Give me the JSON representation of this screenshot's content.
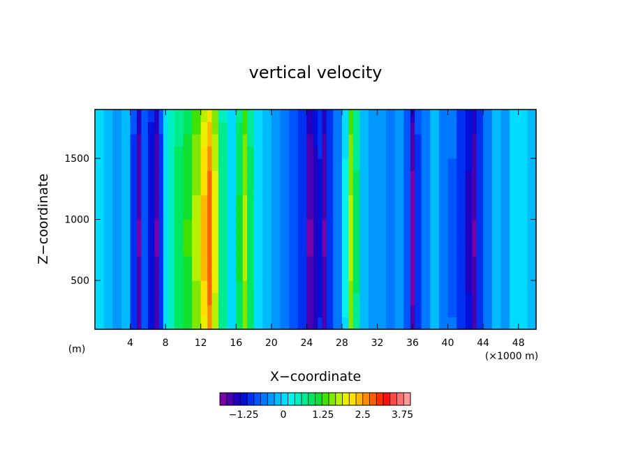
{
  "chart_data": {
    "type": "heatmap",
    "title": "vertical velocity",
    "xlabel": "X−coordinate",
    "ylabel": "Z−coordinate",
    "x_unit_label": "(×1000 m)",
    "y_unit_label": "(m)",
    "xlim": [
      0,
      50
    ],
    "ylim": [
      100,
      1900
    ],
    "x_ticks": [
      4,
      8,
      12,
      16,
      20,
      24,
      28,
      32,
      36,
      40,
      44,
      48
    ],
    "x_tick_labels": [
      "4",
      "8",
      "12",
      "16",
      "20",
      "24",
      "28",
      "32",
      "36",
      "40",
      "44",
      "48"
    ],
    "y_ticks": [
      500,
      1000,
      1500
    ],
    "y_tick_labels": [
      "500",
      "1000",
      "1500"
    ],
    "colorbar": {
      "min": -2.0,
      "max": 4.0,
      "step": 0.25,
      "tick_values": [
        -1.25,
        0,
        1.25,
        2.5,
        3.75
      ],
      "tick_labels": [
        "−1.25",
        "0",
        "1.25",
        "2.5",
        "3.75"
      ],
      "colors": [
        "#7a00a8",
        "#4a00b0",
        "#2200c0",
        "#0010d8",
        "#0030f0",
        "#0055ff",
        "#0078ff",
        "#0098ff",
        "#00bcff",
        "#00dcff",
        "#00f4ec",
        "#00f0c0",
        "#00ec90",
        "#00e860",
        "#10e030",
        "#40e000",
        "#80e800",
        "#b8f000",
        "#e8f000",
        "#ffe000",
        "#ffb800",
        "#ff8c00",
        "#ff6000",
        "#ff3000",
        "#ff1010",
        "#ff4848",
        "#ff7070",
        "#ff9898"
      ]
    },
    "x_columns": [
      0.5,
      1.5,
      2.5,
      3.5,
      4.5,
      5.0,
      5.5,
      6.5,
      7.0,
      7.5,
      8.0,
      8.5,
      9.5,
      10.5,
      11.5,
      12.5,
      13.0,
      13.5,
      14.5,
      15.5,
      16.5,
      17.0,
      17.5,
      18.5,
      19.5,
      20.5,
      21.5,
      22.5,
      23.5,
      24.5,
      25.0,
      25.5,
      26.0,
      26.5,
      27.5,
      28.5,
      29.0,
      29.5,
      30.5,
      31.5,
      32.5,
      33.5,
      34.5,
      35.5,
      36.0,
      36.5,
      37.5,
      38.5,
      39.5,
      40.5,
      41.5,
      42.5,
      43.0,
      43.5,
      44.5,
      45.5,
      46.5,
      47.5,
      48.5,
      49.5
    ],
    "column_values": [
      0.3,
      0.1,
      -0.1,
      0.0,
      -0.8,
      -1.6,
      -0.6,
      -1.1,
      -1.6,
      -0.8,
      0.3,
      0.9,
      1.3,
      1.6,
      2.1,
      2.8,
      3.4,
      2.4,
      1.1,
      0.4,
      1.4,
      2.1,
      1.3,
      0.4,
      0.1,
      -0.1,
      -0.3,
      -0.6,
      -0.9,
      -1.6,
      -1.3,
      -1.0,
      -1.6,
      -0.9,
      -0.4,
      0.5,
      2.1,
      1.2,
      0.2,
      -0.1,
      -0.2,
      -0.4,
      -0.1,
      -0.6,
      -1.7,
      -0.8,
      -0.3,
      0.1,
      -0.3,
      -0.5,
      -0.9,
      -1.2,
      -1.6,
      -0.9,
      -0.3,
      0.0,
      -0.2,
      0.3,
      0.3,
      0.2
    ]
  }
}
